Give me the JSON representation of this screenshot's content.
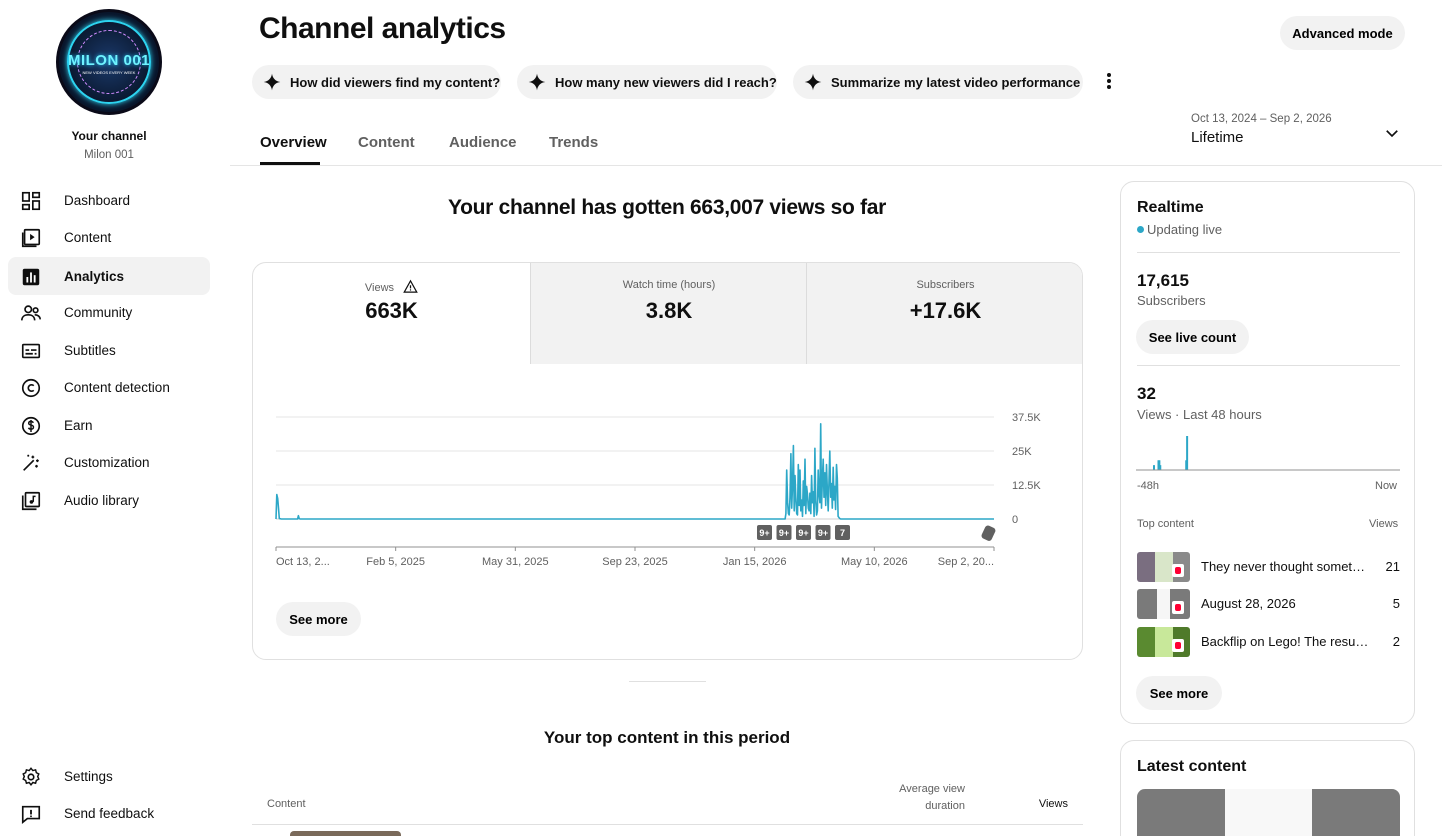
{
  "sidebar": {
    "avatar_text": "MILON 001",
    "avatar_subtext": "NEW VIDEOS EVERY WEEK",
    "channel_label": "Your channel",
    "channel_name": "Milon 001",
    "items": [
      {
        "label": "Dashboard",
        "icon": "dashboard-icon",
        "active": false
      },
      {
        "label": "Content",
        "icon": "content-icon",
        "active": false
      },
      {
        "label": "Analytics",
        "icon": "analytics-icon",
        "active": true
      },
      {
        "label": "Community",
        "icon": "community-icon",
        "active": false
      },
      {
        "label": "Subtitles",
        "icon": "subtitles-icon",
        "active": false
      },
      {
        "label": "Content detection",
        "icon": "copyright-icon",
        "active": false
      },
      {
        "label": "Earn",
        "icon": "dollar-icon",
        "active": false
      },
      {
        "label": "Customization",
        "icon": "magic-wand-icon",
        "active": false
      },
      {
        "label": "Audio library",
        "icon": "audio-library-icon",
        "active": false
      }
    ],
    "bottom_items": [
      {
        "label": "Settings",
        "icon": "gear-icon"
      },
      {
        "label": "Send feedback",
        "icon": "feedback-icon"
      }
    ]
  },
  "header": {
    "title": "Channel analytics",
    "advanced_mode": "Advanced mode",
    "chips": [
      "How did viewers find my content?",
      "How many new viewers did I reach?",
      "Summarize my latest video performance"
    ],
    "tabs": [
      "Overview",
      "Content",
      "Audience",
      "Trends"
    ],
    "active_tab": "Overview",
    "date_range": "Oct 13, 2024 – Sep 2, 2026",
    "period": "Lifetime"
  },
  "overview": {
    "headline": "Your channel has gotten 663,007 views so far",
    "metrics": [
      {
        "label": "Views",
        "value": "663K",
        "active": true,
        "warning": true
      },
      {
        "label": "Watch time (hours)",
        "value": "3.8K",
        "active": false
      },
      {
        "label": "Subscribers",
        "value": "+17.6K",
        "active": false
      }
    ],
    "see_more": "See more",
    "markers": [
      "9+",
      "9+",
      "9+",
      "9+",
      "7"
    ]
  },
  "chart_data": {
    "type": "line",
    "series": [
      {
        "values": [
          0,
          9000,
          7500,
          4000,
          200,
          100,
          50,
          0,
          0,
          0,
          0,
          0,
          0,
          0,
          0,
          0,
          0,
          0,
          0,
          0,
          0,
          0,
          0,
          0,
          0,
          0,
          0,
          1200,
          200,
          0,
          0,
          0,
          0,
          0,
          0,
          0,
          0,
          0,
          0,
          0,
          0,
          0,
          0,
          0,
          0,
          0,
          0,
          0,
          0,
          0,
          0,
          0,
          0,
          0,
          0,
          0,
          0,
          0,
          0,
          0,
          0,
          0,
          0,
          0,
          0,
          0,
          0,
          0,
          0,
          0,
          0,
          0,
          0,
          0,
          0,
          0,
          0,
          0,
          0,
          0,
          0,
          0,
          0,
          0,
          0,
          0,
          0,
          0,
          0,
          0,
          0,
          0,
          0,
          0,
          0,
          0,
          0,
          0,
          0,
          0,
          0,
          0,
          0,
          0,
          0,
          0,
          0,
          0,
          0,
          0,
          0,
          0,
          0,
          0,
          0,
          0,
          0,
          0,
          0,
          0,
          0,
          0,
          0,
          0,
          0,
          0,
          0,
          0,
          0,
          0,
          0,
          0,
          0,
          0,
          0,
          0,
          0,
          0,
          0,
          0,
          0,
          0,
          0,
          0,
          0,
          0,
          0,
          0,
          0,
          0,
          0,
          0,
          0,
          0,
          0,
          0,
          0,
          0,
          0,
          0,
          0,
          0,
          0,
          0,
          0,
          0,
          0,
          0,
          0,
          0,
          0,
          0,
          0,
          0,
          0,
          0,
          0,
          0,
          0,
          0,
          0,
          0,
          0,
          0,
          0,
          0,
          0,
          0,
          0,
          0,
          0,
          0,
          0,
          0,
          0,
          0,
          0,
          0,
          0,
          0,
          0,
          0,
          0,
          0,
          0,
          0,
          0,
          0,
          0,
          0,
          0,
          0,
          0,
          0,
          0,
          0,
          0,
          0,
          0,
          0,
          0,
          0,
          0,
          0,
          0,
          0,
          0,
          0,
          0,
          0,
          0,
          0,
          0,
          0,
          0,
          0,
          0,
          0,
          0,
          0,
          0,
          0,
          0,
          0,
          0,
          0,
          0,
          0,
          0,
          0,
          0,
          0,
          0,
          0,
          0,
          0,
          0,
          0,
          0,
          0,
          0,
          0,
          0,
          0,
          0,
          0,
          0,
          0,
          0,
          0,
          0,
          0,
          0,
          0,
          0,
          0,
          0,
          0,
          0,
          0,
          0,
          0,
          0,
          0,
          0,
          0,
          0,
          0,
          0,
          0,
          0,
          0,
          0,
          0,
          0,
          0,
          0,
          0,
          0,
          0,
          0,
          0,
          0,
          0,
          0,
          0,
          0,
          0,
          0,
          0,
          0,
          0,
          0,
          0,
          0,
          0,
          0,
          0,
          0,
          0,
          0,
          0,
          0,
          0,
          0,
          0,
          0,
          0,
          0,
          0,
          0,
          0,
          0,
          0,
          0,
          0,
          0,
          0,
          0,
          0,
          0,
          0,
          0,
          0,
          0,
          0,
          0,
          0,
          0,
          0,
          0,
          0,
          0,
          0,
          0,
          0,
          0,
          0,
          0,
          0,
          0,
          0,
          0,
          0,
          0,
          0,
          0,
          0,
          0,
          0,
          0,
          0,
          0,
          0,
          0,
          0,
          0,
          0,
          0,
          0,
          0,
          0,
          0,
          0,
          0,
          0,
          0,
          0,
          0,
          0,
          0,
          0,
          0,
          0,
          0,
          0,
          0,
          0,
          0,
          0,
          0,
          0,
          0,
          0,
          0,
          0,
          0,
          0,
          0,
          0,
          0,
          0,
          0,
          0,
          0,
          0,
          0,
          0,
          0,
          0,
          0,
          0,
          0,
          0,
          0,
          0,
          0,
          0,
          0,
          0,
          0,
          0,
          0,
          0,
          0,
          0,
          0,
          0,
          0,
          0,
          0,
          0,
          0,
          0,
          0,
          0,
          0,
          0,
          0,
          0,
          0,
          0,
          0,
          0,
          0,
          0,
          0,
          0,
          0,
          0,
          0,
          0,
          0,
          0,
          0,
          0,
          0,
          0,
          0,
          0,
          0,
          0,
          0,
          0,
          0,
          0,
          0,
          0,
          0,
          0,
          0,
          0,
          0,
          0,
          0,
          0,
          0,
          0,
          0,
          0,
          0,
          0,
          0,
          0,
          0,
          0,
          0,
          0,
          0,
          0,
          0,
          0,
          0,
          0,
          0,
          0,
          0,
          0,
          0,
          0,
          0,
          0,
          0,
          0,
          0,
          0,
          0,
          0,
          0,
          0,
          0,
          0,
          0,
          0,
          0,
          0,
          0,
          0,
          0,
          0,
          0,
          0,
          0,
          0,
          0,
          0,
          0,
          0,
          0,
          0,
          0,
          0,
          0,
          0,
          0,
          0,
          0,
          0,
          0,
          0,
          0,
          0,
          0,
          0,
          0,
          0,
          0,
          0,
          0,
          0,
          0,
          0,
          0,
          0,
          0,
          0,
          0,
          0,
          0,
          0,
          0,
          0,
          0,
          0,
          0,
          0,
          0,
          0,
          0,
          0,
          0,
          0,
          0,
          0,
          0,
          0,
          0,
          0,
          0,
          0,
          0,
          0,
          0,
          0,
          0,
          0,
          0,
          0,
          0,
          0,
          0,
          0,
          0,
          0,
          0,
          0,
          0,
          0,
          0,
          0,
          0,
          0,
          0,
          0,
          0,
          2000,
          18000,
          6000,
          2000,
          1500,
          8000,
          24000,
          4000,
          12000,
          27000,
          3000,
          16000,
          8000,
          2000,
          1500,
          20000,
          5000,
          18000,
          3000,
          7000,
          1000,
          14000,
          5000,
          22000,
          2000,
          12000,
          9000,
          4000,
          3000,
          9500,
          2000,
          16000,
          6000,
          10000,
          1000,
          26000,
          7000,
          1500,
          3000,
          18000,
          9000,
          6000,
          35000,
          4000,
          15000,
          22000,
          8000,
          17000,
          5000,
          20000,
          10000,
          3000,
          14000,
          25000,
          8000,
          13000,
          4000,
          19000,
          7000,
          12000,
          3500,
          20000,
          15000,
          1000,
          500,
          200,
          0,
          0,
          0,
          0,
          0,
          0,
          0,
          0,
          0,
          0,
          0,
          0,
          0,
          0,
          0,
          0,
          0,
          0,
          0,
          0,
          0,
          0,
          0,
          0,
          0,
          0,
          0,
          0,
          0,
          0,
          0,
          0,
          0,
          0,
          0,
          0,
          0,
          0,
          0,
          0,
          0,
          0,
          0,
          0,
          0,
          0,
          0,
          0,
          0,
          0,
          0,
          0,
          0,
          0,
          0,
          0,
          0,
          0,
          0,
          0,
          0,
          0,
          0,
          0,
          0,
          0,
          0,
          0,
          0,
          0,
          0,
          0,
          0,
          0,
          0,
          0,
          0,
          0,
          0,
          0,
          0,
          0,
          0,
          0,
          0,
          0,
          0,
          0,
          0,
          0,
          0,
          0,
          0,
          0,
          0,
          0,
          0,
          0,
          0,
          0,
          0,
          0,
          0,
          0,
          0,
          0,
          0,
          0,
          0,
          0,
          0,
          0,
          0,
          0,
          0,
          0,
          0,
          0,
          0,
          0,
          0,
          0,
          0,
          0,
          0,
          0,
          0,
          0,
          0,
          0,
          0,
          0,
          0,
          0,
          0,
          0,
          0,
          0,
          0,
          0,
          0,
          0,
          0,
          0,
          0,
          0,
          0,
          0,
          0,
          0,
          0,
          0,
          0,
          0,
          0,
          0,
          0,
          0,
          0,
          0,
          0,
          0,
          0,
          0,
          0,
          0,
          0,
          0,
          0,
          0,
          0,
          0,
          0,
          0,
          0,
          0,
          0,
          0,
          0,
          0,
          0,
          0,
          0,
          0,
          0,
          0
        ]
      }
    ],
    "x_ticks": [
      "Oct 13, 2...",
      "Feb 5, 2025",
      "May 31, 2025",
      "Sep 23, 2025",
      "Jan 15, 2026",
      "May 10, 2026",
      "Sep 2, 20..."
    ],
    "y_ticks": [
      "37.5K",
      "25K",
      "12.5K",
      "0"
    ],
    "ylim": [
      0,
      37500
    ],
    "color": "#2ca7c7",
    "grid": true
  },
  "top_content": {
    "title": "Your top content in this period",
    "col_content": "Content",
    "col_avd": "Average view duration",
    "col_views": "Views"
  },
  "realtime": {
    "title": "Realtime",
    "status": "Updating live",
    "subscribers_value": "17,615",
    "subscribers_label": "Subscribers",
    "live_count_button": "See live count",
    "views_value": "32",
    "views_label": "Views · Last 48 hours",
    "axis_start": "-48h",
    "axis_end": "Now",
    "bars_48h": [
      0,
      0,
      0,
      0,
      0,
      0,
      0,
      0,
      0,
      0,
      0,
      0,
      0,
      0,
      0,
      0,
      0,
      0,
      0,
      1,
      0,
      0,
      0,
      0,
      2,
      2,
      1,
      0,
      0,
      0,
      0,
      0,
      0,
      0,
      0,
      0,
      0,
      0,
      0,
      0,
      0,
      0,
      0,
      0,
      0,
      0,
      0,
      0,
      0,
      0,
      0,
      0,
      0,
      0,
      0,
      2,
      7,
      0,
      0,
      0,
      0,
      0,
      0,
      0,
      0,
      0,
      0,
      0,
      0,
      0,
      0,
      0,
      0,
      0,
      0,
      0,
      0,
      0,
      0,
      0,
      0,
      0,
      0,
      0,
      0,
      0,
      0,
      0,
      0,
      0,
      0,
      0,
      0,
      0,
      0,
      0,
      0,
      0,
      0,
      0,
      0,
      0,
      0,
      0,
      0,
      0,
      0,
      0,
      0,
      0,
      0,
      0,
      0,
      0,
      0,
      0,
      0,
      0,
      0,
      0,
      0,
      0,
      0,
      0,
      0,
      0,
      0,
      0,
      0,
      0,
      0,
      0,
      0,
      0,
      0,
      0,
      0,
      0,
      0,
      0,
      0,
      0,
      0,
      0,
      0,
      0,
      0,
      0,
      0,
      0,
      0,
      0,
      0,
      0,
      0,
      0,
      0,
      0,
      0,
      0,
      0,
      0,
      0,
      0,
      0,
      0,
      0,
      0,
      0,
      0,
      0,
      0,
      0,
      0,
      0,
      0,
      0,
      0,
      0,
      0,
      0,
      0,
      0,
      0,
      0,
      0,
      0,
      0,
      0,
      0,
      0,
      0,
      0,
      0,
      0,
      0,
      0,
      0,
      0,
      0,
      0,
      0,
      0,
      0,
      0,
      0,
      0,
      0,
      0,
      0,
      0,
      0,
      0,
      0,
      0,
      0,
      0,
      0,
      0,
      0,
      0,
      0,
      0,
      0,
      0,
      0,
      0,
      0,
      0,
      0,
      0,
      0,
      0,
      0,
      0,
      0,
      0,
      0,
      0,
      0,
      0,
      0,
      0,
      0,
      0,
      0,
      0,
      0,
      0,
      0,
      0,
      0,
      0,
      0,
      0,
      0,
      0,
      0,
      0,
      0,
      0,
      0,
      0,
      0,
      0,
      0,
      0,
      0,
      0,
      0,
      0,
      0,
      0,
      0,
      0,
      0,
      0,
      0,
      0,
      0,
      0,
      0,
      0,
      0,
      0,
      0,
      0,
      0,
      0,
      0,
      0,
      0,
      0,
      0,
      0
    ],
    "top_label": "Top content",
    "views_col": "Views",
    "top_items": [
      {
        "title": "They never thought something...",
        "views": "21"
      },
      {
        "title": "August 28, 2026",
        "views": "5"
      },
      {
        "title": "Backflip on Lego! The result...",
        "views": "2"
      }
    ],
    "see_more": "See more"
  },
  "latest": {
    "title": "Latest content"
  }
}
